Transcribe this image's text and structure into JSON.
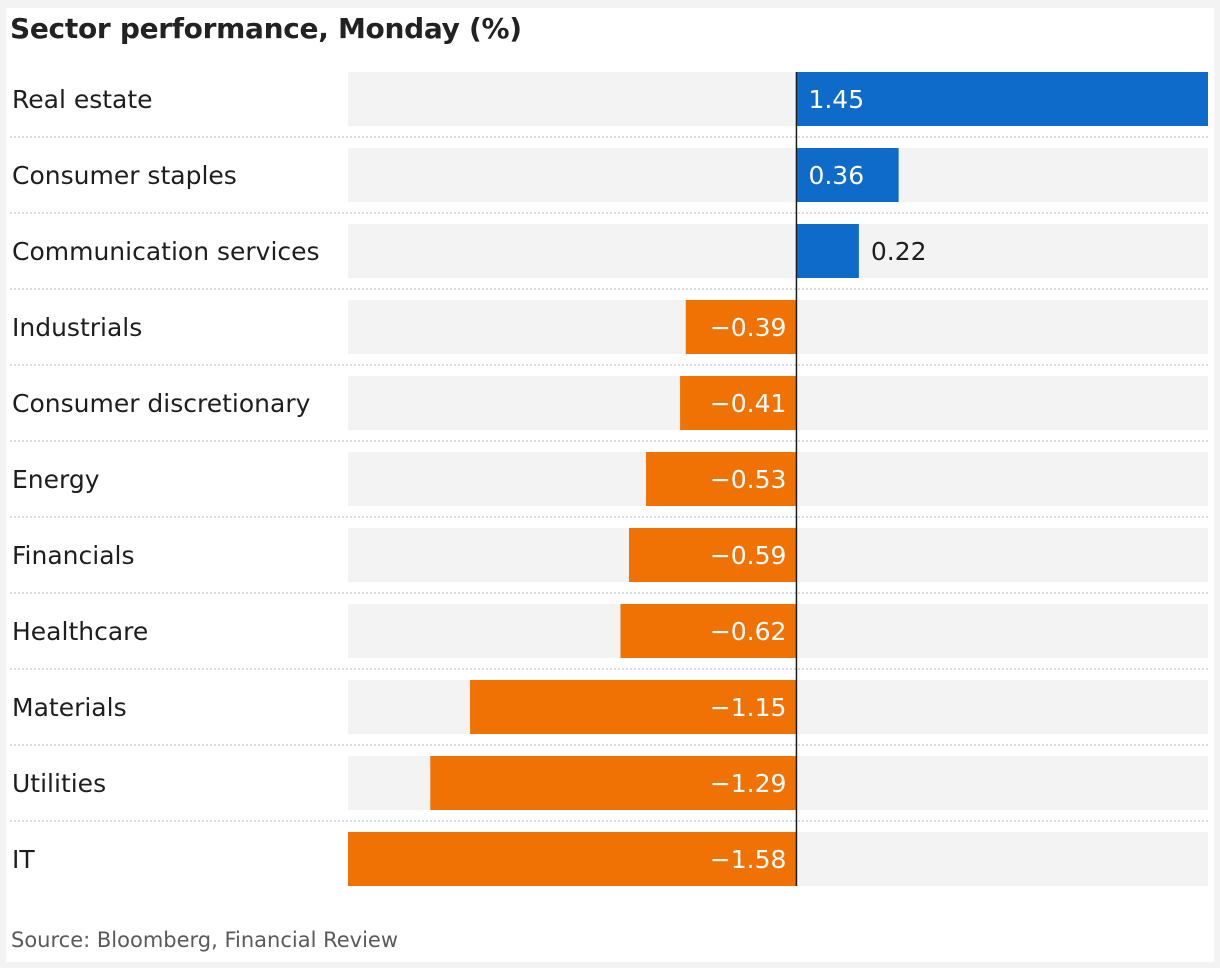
{
  "title": "Sector performance, Monday (%)",
  "source": "Source: Bloomberg, Financial Review",
  "colors": {
    "positive": "#0f6bc9",
    "negative": "#f07205",
    "track": "#f3f3f3",
    "axis": "#1a1a1a",
    "separator": "#bdbdbd",
    "label_inside": "#ffffff",
    "label_outside": "#1e1e1e"
  },
  "chart_data": {
    "type": "bar",
    "orientation": "horizontal",
    "title": "Sector performance, Monday (%)",
    "categories": [
      "Real estate",
      "Consumer staples",
      "Communication services",
      "Industrials",
      "Consumer discretionary",
      "Energy",
      "Financials",
      "Healthcare",
      "Materials",
      "Utilities",
      "IT"
    ],
    "values": [
      1.45,
      0.36,
      0.22,
      -0.39,
      -0.41,
      -0.53,
      -0.59,
      -0.62,
      -1.15,
      -1.29,
      -1.58
    ],
    "value_labels": [
      "1.45",
      "0.36",
      "0.22",
      "−0.39",
      "−0.41",
      "−0.53",
      "−0.59",
      "−0.62",
      "−1.15",
      "−1.29",
      "−1.58"
    ],
    "xlim": [
      -1.58,
      1.45
    ],
    "grid": false,
    "legend": "none"
  }
}
